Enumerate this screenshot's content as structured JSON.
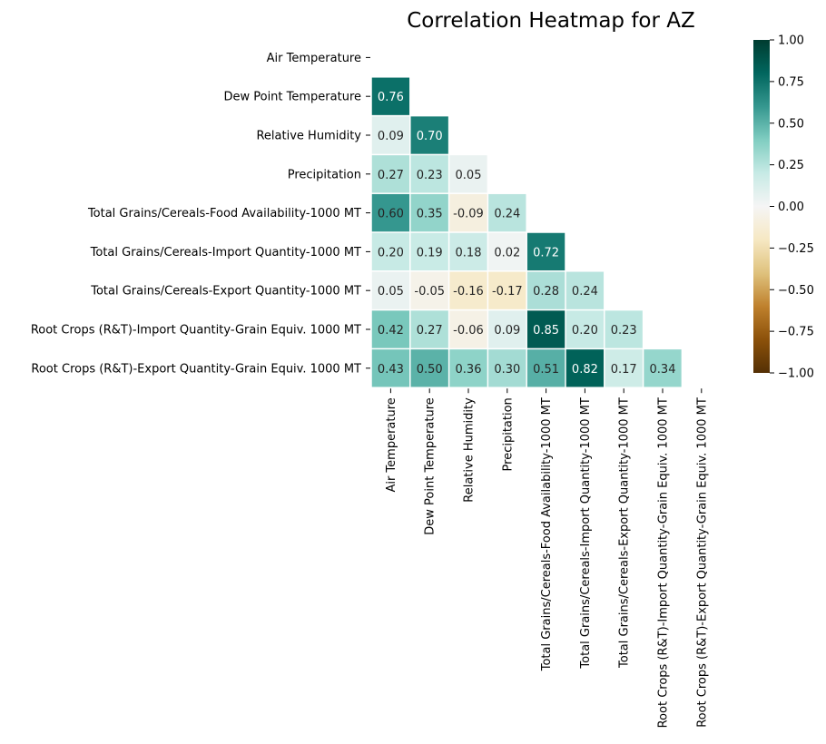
{
  "chart_data": {
    "type": "heatmap",
    "title": "Correlation Heatmap for AZ",
    "variables": [
      "Air Temperature",
      "Dew Point Temperature",
      "Relative Humidity",
      "Precipitation",
      "Total Grains/Cereals-Food Availability-1000 MT",
      "Total Grains/Cereals-Import Quantity-1000 MT",
      "Total Grains/Cereals-Export Quantity-1000 MT",
      "Root Crops (R&T)-Import Quantity-Grain Equiv. 1000 MT",
      "Root Crops (R&T)-Export Quantity-Grain Equiv. 1000 MT"
    ],
    "lower_triangle_values": [
      [],
      [
        0.76
      ],
      [
        0.09,
        0.7
      ],
      [
        0.27,
        0.23,
        0.05
      ],
      [
        0.6,
        0.35,
        -0.09,
        0.24
      ],
      [
        0.2,
        0.19,
        0.18,
        0.02,
        0.72
      ],
      [
        0.05,
        -0.05,
        -0.16,
        -0.17,
        0.28,
        0.24
      ],
      [
        0.42,
        0.27,
        -0.06,
        0.09,
        0.85,
        0.2,
        0.23
      ],
      [
        0.43,
        0.5,
        0.36,
        0.3,
        0.51,
        0.82,
        0.17,
        0.34
      ]
    ],
    "value_format": "2 decimals",
    "mask": "upper triangle and diagonal",
    "colormap": "BrBG",
    "vmin": -1.0,
    "vmax": 1.0,
    "colorbar_ticks": [
      "1.00",
      "0.75",
      "0.50",
      "0.25",
      "0.00",
      "−0.25",
      "−0.50",
      "−0.75",
      "−1.00"
    ],
    "colorbar_tick_values": [
      1.0,
      0.75,
      0.5,
      0.25,
      0.0,
      -0.25,
      -0.5,
      -0.75,
      -1.0
    ]
  }
}
